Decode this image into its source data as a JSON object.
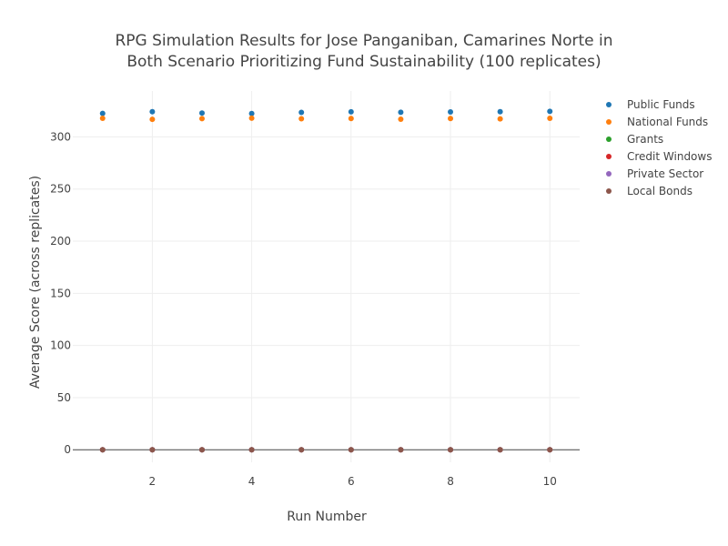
{
  "chart_data": {
    "type": "scatter",
    "title": [
      "RPG Simulation Results for Jose Panganiban, Camarines Norte in",
      "Both Scenario Prioritizing Fund Sustainability (100 replicates)"
    ],
    "xlabel": "Run Number",
    "ylabel": "Average Score (across replicates)",
    "xlim": [
      0.4,
      10.6
    ],
    "ylim": [
      -12,
      344
    ],
    "xticks": [
      2,
      4,
      6,
      8,
      10
    ],
    "yticks": [
      0,
      50,
      100,
      150,
      200,
      250,
      300
    ],
    "grid": true,
    "legend_position": "top-right",
    "x": [
      1,
      2,
      3,
      4,
      5,
      6,
      7,
      8,
      9,
      10
    ],
    "series": [
      {
        "name": "Public Funds",
        "color": "#1f77b4",
        "values": [
          322.5,
          324.2,
          322.8,
          322.4,
          323.5,
          324.0,
          323.6,
          323.9,
          324.1,
          324.5
        ]
      },
      {
        "name": "National Funds",
        "color": "#ff7f0e",
        "values": [
          317.8,
          316.8,
          317.5,
          317.9,
          317.4,
          317.6,
          316.9,
          317.6,
          317.3,
          317.8
        ]
      },
      {
        "name": "Grants",
        "color": "#2ca02c",
        "values": [
          0,
          0,
          0,
          0,
          0,
          0,
          0,
          0,
          0,
          0
        ]
      },
      {
        "name": "Credit Windows",
        "color": "#d62728",
        "values": [
          0,
          0,
          0,
          0,
          0,
          0,
          0,
          0,
          0,
          0
        ]
      },
      {
        "name": "Private Sector",
        "color": "#9467bd",
        "values": [
          0,
          0,
          0,
          0,
          0,
          0,
          0,
          0,
          0,
          0
        ]
      },
      {
        "name": "Local Bonds",
        "color": "#8c564b",
        "values": [
          0,
          0,
          0,
          0,
          0,
          0,
          0,
          0,
          0,
          0
        ]
      }
    ]
  }
}
